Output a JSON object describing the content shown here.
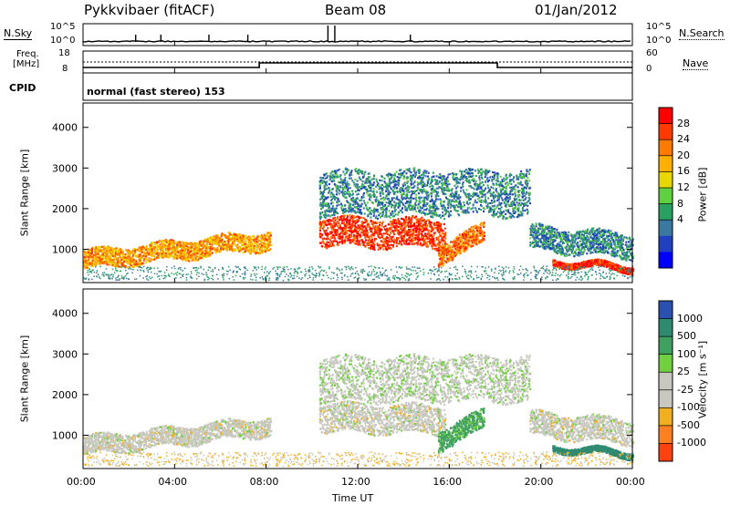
{
  "header": {
    "station": "Pykkvibaer (fitACF)",
    "beam": "Beam 08",
    "date": "01/Jan/2012"
  },
  "top_panels": {
    "nsky_label": "N.Sky",
    "nsky_ticks": [
      "10^5",
      "10^0"
    ],
    "nsearch_label": "N.Search",
    "nsearch_ticks": [
      "10^5",
      "10^0"
    ],
    "freq_label": "Freq.",
    "freq_unit": "[MHz]",
    "freq_ticks": [
      "18",
      "8"
    ],
    "nave_label": "Nave",
    "nave_ticks": [
      "60",
      "0"
    ],
    "cpid_label": "CPID",
    "cpid_text": "normal (fast stereo) 153",
    "freq_step_hours": [
      7.7,
      18.1
    ],
    "nsky_spikes_hours": [
      2.3,
      3.4,
      5.5,
      7.2,
      10.7,
      11.0,
      14.3
    ]
  },
  "power_panel": {
    "ylabel": "Slant Range [km]",
    "cbar_label": "Power [dB]",
    "cbar_ticks": [
      "28",
      "24",
      "20",
      "16",
      "12",
      "8",
      "4"
    ],
    "cbar_colors": [
      "#ff0000",
      "#ff3a00",
      "#ff7a00",
      "#ffb000",
      "#e8d800",
      "#5fd040",
      "#2aa060",
      "#3a7aa0",
      "#2040c0",
      "#0000ff"
    ]
  },
  "velocity_panel": {
    "ylabel": "Slant Range [km]",
    "cbar_label": "Velocity [m s⁻¹]",
    "cbar_ticks": [
      "1000",
      "500",
      "100",
      "25",
      "-25",
      "-100",
      "-500",
      "-1000"
    ],
    "cbar_colors": [
      "#2a50b0",
      "#2f8a70",
      "#40a060",
      "#70d040",
      "#c8c8c0",
      "#c8c8c0",
      "#f0b020",
      "#ff8020",
      "#ff4010",
      "#ff0000"
    ]
  },
  "x_axis": {
    "label": "Time UT",
    "ticks": [
      "00:00",
      "04:00",
      "08:00",
      "12:00",
      "16:00",
      "20:00",
      "00:00"
    ]
  },
  "chart_data": {
    "type": "heatmap",
    "title": "Pykkvibaer (fitACF) Beam 08 01/Jan/2012",
    "xlabel": "Time UT",
    "ylabel": "Slant Range [km]",
    "xlim_hours": [
      0,
      24
    ],
    "ylim_km": [
      180,
      4600
    ],
    "ytick_values": [
      1000,
      2000,
      3000,
      4000
    ],
    "scatter_regions": [
      {
        "t_start": 0.0,
        "t_end": 8.2,
        "range_center_start": 750,
        "range_center_end": 1250,
        "width_km": 450,
        "power_db": 22,
        "velocity": 0
      },
      {
        "t_start": 10.3,
        "t_end": 15.8,
        "range_center_start": 1450,
        "range_center_end": 1400,
        "width_km": 700,
        "power_db": 28,
        "velocity": 0
      },
      {
        "t_start": 10.3,
        "t_end": 19.5,
        "range_center_start": 2400,
        "range_center_end": 2400,
        "width_km": 1100,
        "power_db": 10,
        "velocity": 10
      },
      {
        "t_start": 15.5,
        "t_end": 17.5,
        "range_center_start": 900,
        "range_center_end": 1400,
        "width_km": 500,
        "power_db": 24,
        "velocity": 60
      },
      {
        "t_start": 19.5,
        "t_end": 24.0,
        "range_center_start": 1300,
        "range_center_end": 1100,
        "width_km": 600,
        "power_db": 10,
        "velocity": 0
      },
      {
        "t_start": 20.5,
        "t_end": 24.0,
        "range_center_start": 700,
        "range_center_end": 550,
        "width_km": 150,
        "power_db": 28,
        "velocity": 300
      }
    ]
  }
}
